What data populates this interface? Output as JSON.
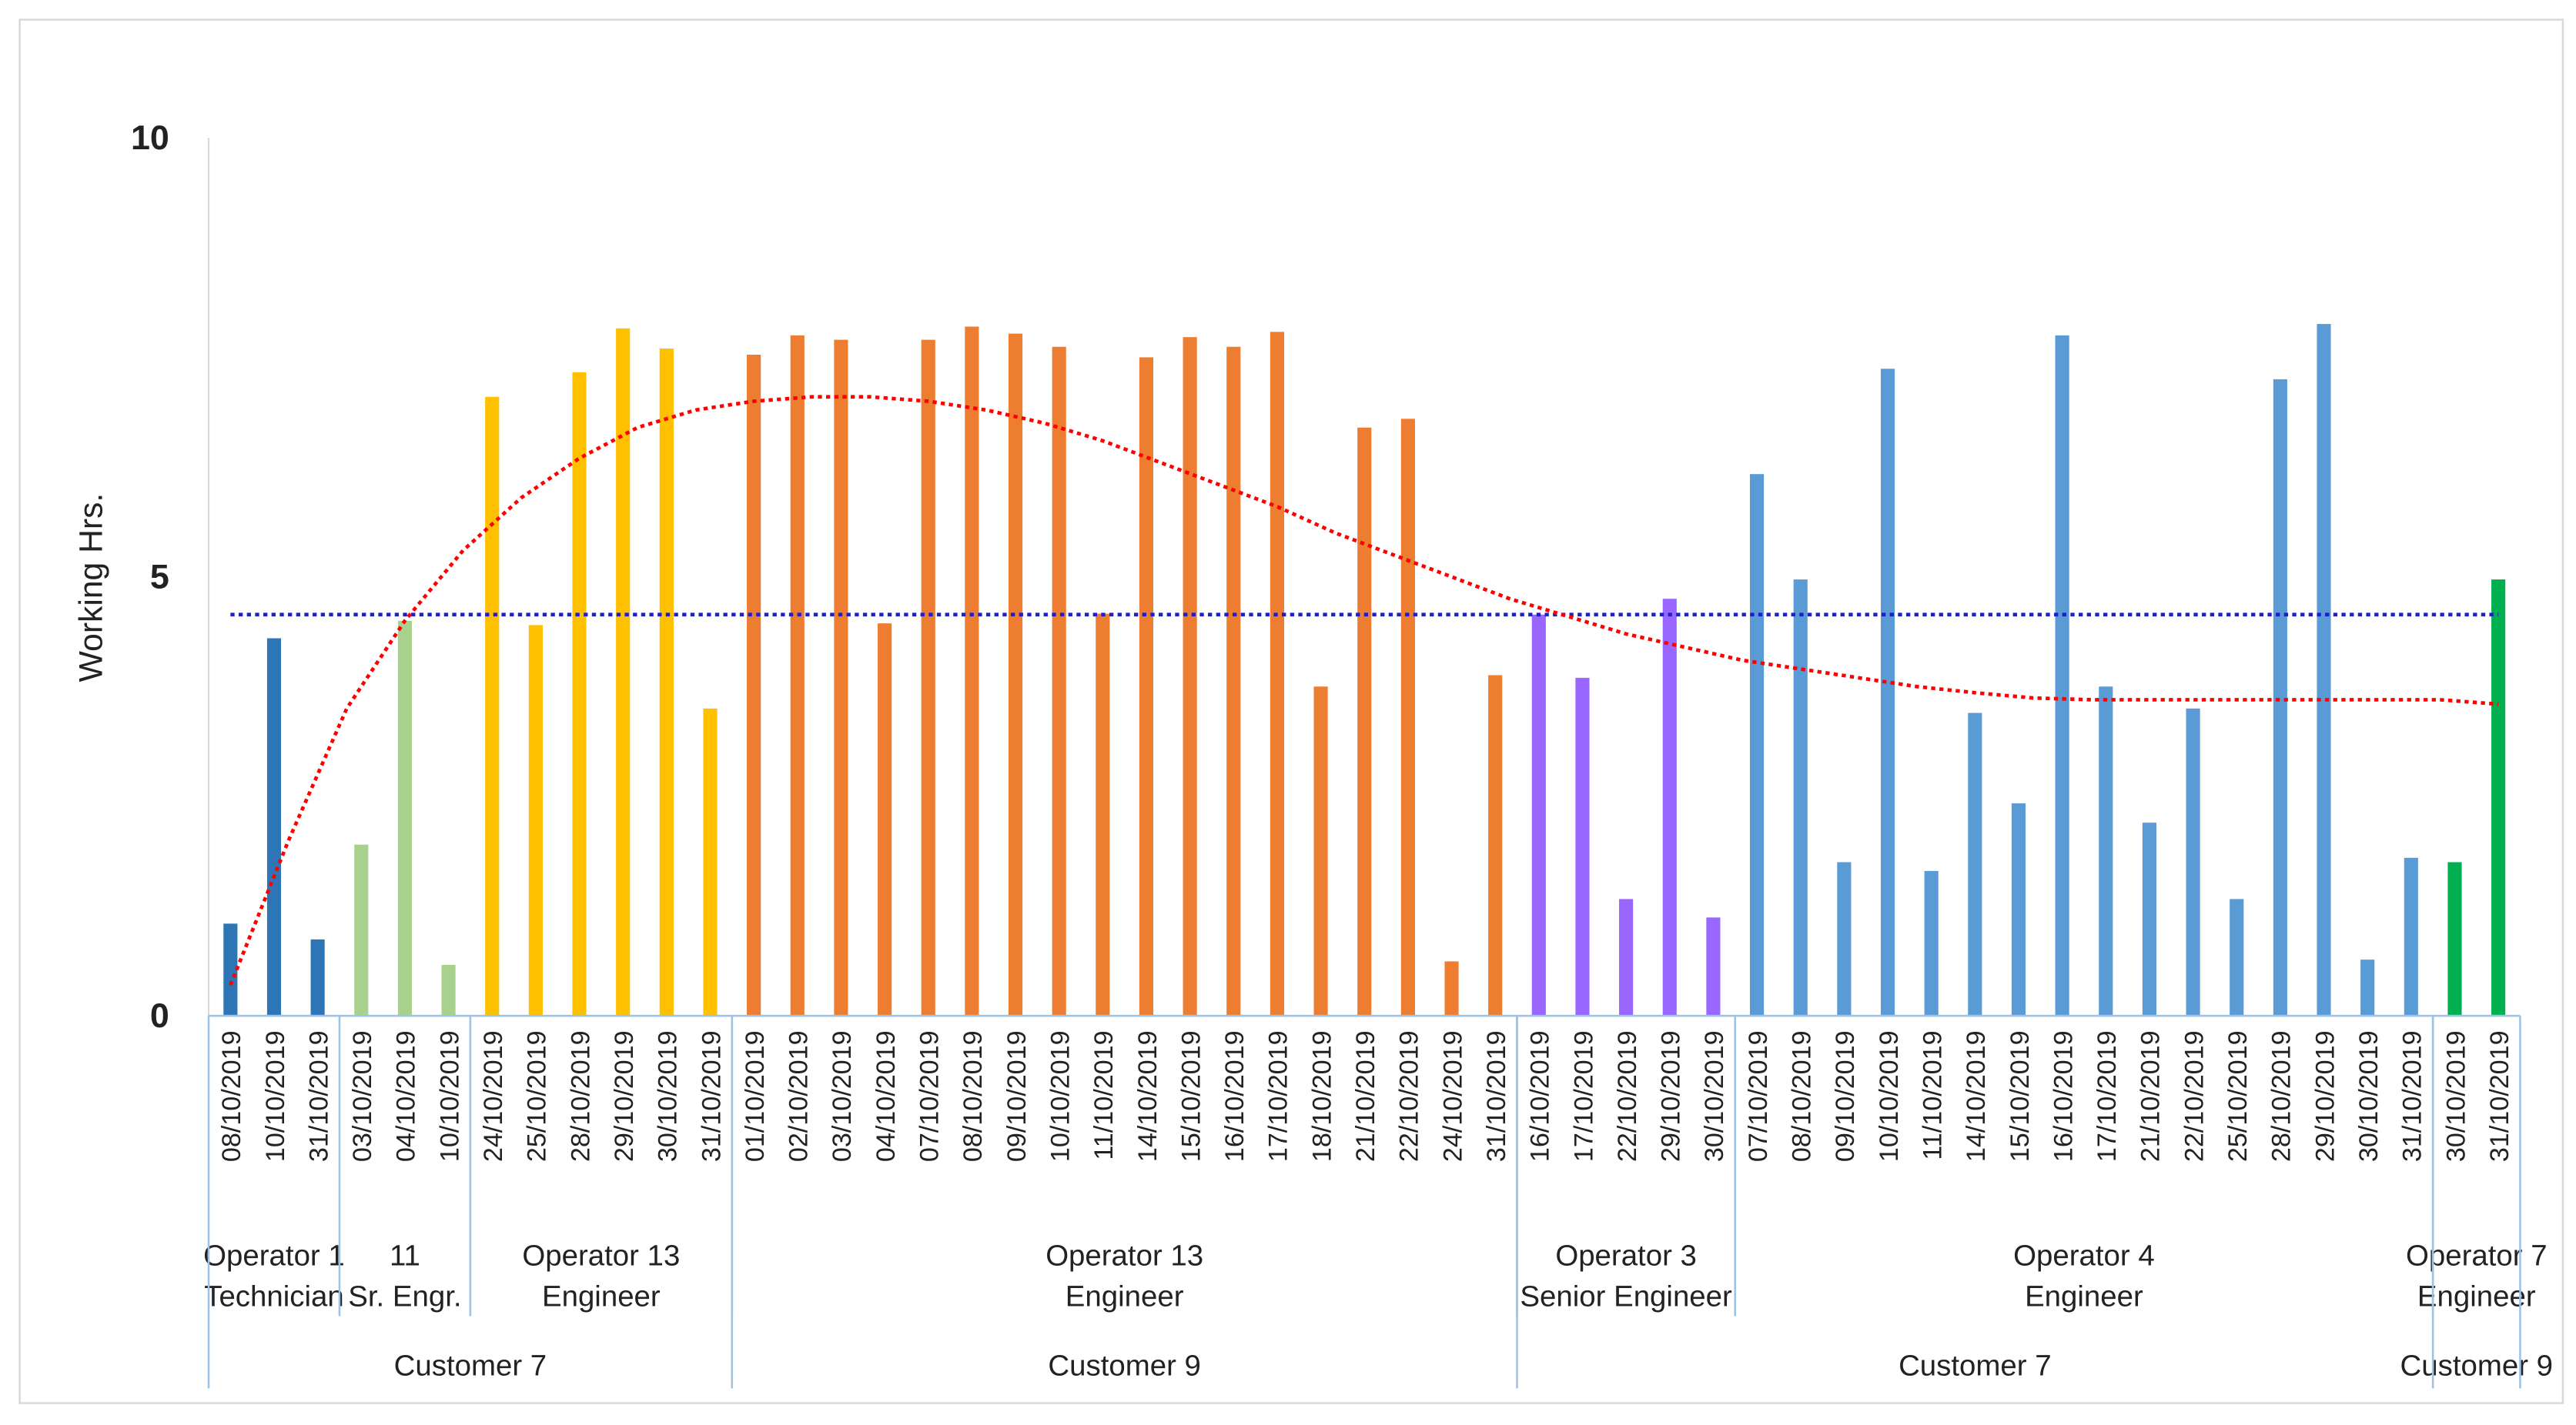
{
  "chart_data": {
    "type": "bar",
    "title": "",
    "xlabel": "",
    "ylabel": "Working Hrs.",
    "ylim": [
      0,
      10
    ],
    "yticks": [
      0,
      5,
      10
    ],
    "grid": false,
    "series": [
      {
        "name": "Operator 1 Technician",
        "color": "#2E75B6",
        "start": 0,
        "dates": [
          "08/10/2019",
          "10/10/2019",
          "31/10/2019"
        ],
        "values": [
          1.05,
          4.3,
          0.87
        ]
      },
      {
        "name": "11 Sr. Engr.",
        "color": "#A9D18E",
        "start": 3,
        "dates": [
          "03/10/2019",
          "04/10/2019",
          "10/10/2019"
        ],
        "values": [
          1.95,
          4.5,
          0.58
        ]
      },
      {
        "name": "Operator 13 Engineer (Customer 7)",
        "color": "#FFC000",
        "start": 6,
        "dates": [
          "24/10/2019",
          "25/10/2019",
          "28/10/2019",
          "29/10/2019",
          "30/10/2019",
          "31/10/2019"
        ],
        "values": [
          7.05,
          4.45,
          7.33,
          7.83,
          7.6,
          3.5
        ]
      },
      {
        "name": "Operator 13 Engineer (Customer 9)",
        "color": "#ED7D31",
        "start": 12,
        "dates": [
          "01/10/2019",
          "02/10/2019",
          "03/10/2019",
          "04/10/2019",
          "07/10/2019",
          "08/10/2019",
          "09/10/2019",
          "10/10/2019",
          "11/10/2019",
          "14/10/2019",
          "15/10/2019",
          "16/10/2019",
          "17/10/2019",
          "18/10/2019",
          "21/10/2019",
          "22/10/2019",
          "24/10/2019",
          "31/10/2019"
        ],
        "values": [
          7.53,
          7.75,
          7.7,
          4.47,
          7.7,
          7.85,
          7.77,
          7.62,
          4.58,
          7.5,
          7.73,
          7.62,
          7.79,
          3.75,
          6.7,
          6.8,
          0.62,
          3.88
        ]
      },
      {
        "name": "Operator 3 Senior Engineer",
        "color": "#9966FF",
        "start": 30,
        "dates": [
          "16/10/2019",
          "17/10/2019",
          "22/10/2019",
          "29/10/2019",
          "30/10/2019"
        ],
        "values": [
          4.57,
          3.85,
          1.33,
          4.75,
          1.12
        ]
      },
      {
        "name": "Operator 4 Engineer",
        "color": "#5B9BD5",
        "start": 35,
        "dates": [
          "07/10/2019",
          "08/10/2019",
          "09/10/2019",
          "10/10/2019",
          "11/10/2019",
          "14/10/2019",
          "15/10/2019",
          "16/10/2019",
          "17/10/2019",
          "21/10/2019",
          "22/10/2019",
          "25/10/2019",
          "28/10/2019",
          "29/10/2019",
          "30/10/2019",
          "31/10/2019"
        ],
        "values": [
          6.17,
          4.97,
          1.75,
          7.37,
          1.65,
          3.45,
          2.42,
          7.75,
          3.75,
          2.2,
          3.5,
          1.33,
          7.25,
          7.88,
          0.64,
          1.8
        ]
      },
      {
        "name": "Operator 7 Engineer",
        "color": "#00B050",
        "start": 51,
        "dates": [
          "30/10/2019",
          "31/10/2019"
        ],
        "values": [
          1.75,
          4.97
        ]
      }
    ],
    "average_line": {
      "value": 4.57,
      "color": "#1F1FC8",
      "style": "dotted"
    },
    "trend_line": {
      "type": "polynomial",
      "color": "#FF0000",
      "style": "dotted",
      "values": [
        0.35,
        2.0,
        3.5,
        4.5,
        5.3,
        5.9,
        6.35,
        6.7,
        6.9,
        7.0,
        7.05,
        7.05,
        7.0,
        6.9,
        6.75,
        6.55,
        6.3,
        6.05,
        5.8,
        5.5,
        5.25,
        5.0,
        4.75,
        4.55,
        4.35,
        4.2,
        4.05,
        3.95,
        3.85,
        3.75,
        3.68,
        3.62,
        3.6,
        3.6,
        3.6,
        3.6,
        3.6,
        3.6,
        3.6,
        3.55
      ]
    },
    "operator_groups": [
      {
        "line1": "Operator 1",
        "line2": "Technician",
        "from": 0,
        "to": 3
      },
      {
        "line1": "11",
        "line2": "Sr. Engr.",
        "from": 3,
        "to": 6
      },
      {
        "line1": "Operator 13",
        "line2": "Engineer",
        "from": 6,
        "to": 12
      },
      {
        "line1": "Operator 13",
        "line2": "Engineer",
        "from": 12,
        "to": 30
      },
      {
        "line1": "Operator 3",
        "line2": "Senior Engineer",
        "from": 30,
        "to": 35
      },
      {
        "line1": "Operator 4",
        "line2": "Engineer",
        "from": 35,
        "to": 51
      },
      {
        "line1": "Operator 7",
        "line2": "Engineer",
        "from": 51,
        "to": 53
      }
    ],
    "customer_groups": [
      {
        "label": "Customer 7",
        "from": 0,
        "to": 12
      },
      {
        "label": "Customer 9",
        "from": 12,
        "to": 30
      },
      {
        "label": "Customer 7",
        "from": 30,
        "to": 51
      },
      {
        "label": "Customer 9",
        "from": 51,
        "to": 53
      }
    ]
  }
}
